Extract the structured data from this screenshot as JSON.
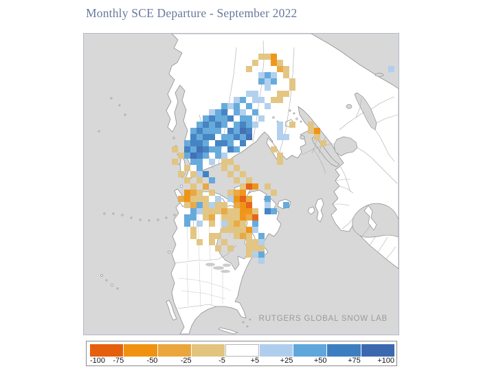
{
  "title": "Monthly SCE Departure - September 2022",
  "map": {
    "watermark": "RUTGERS GLOBAL SNOW LAB",
    "ocean_color": "#d8d8d8",
    "land_color": "#ffffff",
    "coast_color": "#8f8f8f",
    "border_color": "#a9a9a9",
    "state_border_color": "#c6c6c6",
    "cell_size": 9,
    "bins": [
      "#e55f0d",
      "#f0920f",
      "#eaa63c",
      "#e2c47e",
      "#afceee",
      "#5fa7db",
      "#3d7ec0",
      "#3b69b0"
    ],
    "bin_meanings": [
      "-100 to -75",
      "-75 to -50",
      "-50 to -25",
      "-25 to -5",
      "+5 to +25",
      "+25 to +50",
      "+50 to +75",
      "+75 to +100"
    ],
    "cells": [
      [
        26,
        9,
        4
      ],
      [
        27,
        9,
        4
      ],
      [
        24,
        10,
        4
      ],
      [
        25,
        10,
        5
      ],
      [
        27,
        10,
        4
      ],
      [
        28,
        10,
        4
      ],
      [
        22,
        11,
        5
      ],
      [
        23,
        11,
        4
      ],
      [
        24,
        11,
        5
      ],
      [
        26,
        11,
        5
      ],
      [
        29,
        11,
        4
      ],
      [
        20,
        12,
        4
      ],
      [
        21,
        12,
        5
      ],
      [
        22,
        12,
        6
      ],
      [
        24,
        12,
        5
      ],
      [
        25,
        12,
        4
      ],
      [
        27,
        12,
        5
      ],
      [
        19,
        13,
        5
      ],
      [
        20,
        13,
        6
      ],
      [
        21,
        13,
        5
      ],
      [
        22,
        13,
        5
      ],
      [
        23,
        13,
        6
      ],
      [
        25,
        13,
        5
      ],
      [
        26,
        13,
        5
      ],
      [
        28,
        13,
        4
      ],
      [
        18,
        14,
        5
      ],
      [
        19,
        14,
        6
      ],
      [
        20,
        14,
        5
      ],
      [
        21,
        14,
        6
      ],
      [
        22,
        14,
        5
      ],
      [
        24,
        14,
        5
      ],
      [
        25,
        14,
        6
      ],
      [
        26,
        14,
        5
      ],
      [
        27,
        14,
        4
      ],
      [
        17,
        15,
        5
      ],
      [
        18,
        15,
        6
      ],
      [
        19,
        15,
        5
      ],
      [
        20,
        15,
        5
      ],
      [
        21,
        15,
        5
      ],
      [
        23,
        15,
        6
      ],
      [
        24,
        15,
        5
      ],
      [
        25,
        15,
        7
      ],
      [
        26,
        15,
        6
      ],
      [
        17,
        16,
        6
      ],
      [
        18,
        16,
        5
      ],
      [
        19,
        16,
        6
      ],
      [
        20,
        16,
        6
      ],
      [
        22,
        16,
        5
      ],
      [
        23,
        16,
        5
      ],
      [
        24,
        16,
        6
      ],
      [
        25,
        16,
        5
      ],
      [
        26,
        16,
        7
      ],
      [
        16,
        17,
        5
      ],
      [
        17,
        17,
        6
      ],
      [
        18,
        17,
        6
      ],
      [
        19,
        17,
        5
      ],
      [
        21,
        17,
        6
      ],
      [
        22,
        17,
        6
      ],
      [
        23,
        17,
        5
      ],
      [
        25,
        17,
        6
      ],
      [
        16,
        18,
        6
      ],
      [
        17,
        18,
        5
      ],
      [
        18,
        18,
        7
      ],
      [
        19,
        18,
        6
      ],
      [
        20,
        18,
        5
      ],
      [
        21,
        18,
        5
      ],
      [
        23,
        18,
        6
      ],
      [
        24,
        18,
        5
      ],
      [
        16,
        19,
        5
      ],
      [
        17,
        19,
        7
      ],
      [
        18,
        19,
        6
      ],
      [
        19,
        19,
        5
      ],
      [
        21,
        19,
        5
      ],
      [
        22,
        19,
        4
      ],
      [
        17,
        20,
        5
      ],
      [
        18,
        20,
        5
      ],
      [
        20,
        20,
        4
      ],
      [
        31,
        14,
        4
      ],
      [
        31,
        15,
        4
      ],
      [
        31,
        16,
        4
      ],
      [
        32,
        16,
        4
      ],
      [
        27,
        4,
        3
      ],
      [
        28,
        3,
        3
      ],
      [
        29,
        3,
        3
      ],
      [
        30,
        3,
        1
      ],
      [
        30,
        4,
        1
      ],
      [
        31,
        4,
        3
      ],
      [
        31,
        5,
        2
      ],
      [
        32,
        5,
        3
      ],
      [
        32,
        6,
        3
      ],
      [
        33,
        7,
        3
      ],
      [
        33,
        8,
        3
      ],
      [
        32,
        9,
        3
      ],
      [
        31,
        9,
        3
      ],
      [
        30,
        10,
        3
      ],
      [
        31,
        10,
        3
      ],
      [
        26,
        5,
        3
      ],
      [
        28,
        6,
        4
      ],
      [
        29,
        6,
        5
      ],
      [
        28,
        7,
        5
      ],
      [
        29,
        7,
        4
      ],
      [
        30,
        6,
        4
      ],
      [
        30,
        7,
        5
      ],
      [
        29,
        8,
        4
      ],
      [
        49,
        5,
        4
      ],
      [
        14,
        18,
        3
      ],
      [
        15,
        19,
        3
      ],
      [
        14,
        20,
        3
      ],
      [
        16,
        21,
        3
      ],
      [
        15,
        22,
        3
      ],
      [
        17,
        22,
        3
      ],
      [
        16,
        23,
        3
      ],
      [
        18,
        23,
        3
      ],
      [
        17,
        24,
        3
      ],
      [
        19,
        24,
        2
      ],
      [
        22,
        20,
        3
      ],
      [
        23,
        20,
        3
      ],
      [
        22,
        21,
        3
      ],
      [
        24,
        21,
        3
      ],
      [
        23,
        22,
        3
      ],
      [
        25,
        22,
        3
      ],
      [
        24,
        23,
        3
      ],
      [
        26,
        23,
        3
      ],
      [
        25,
        24,
        3
      ],
      [
        18,
        21,
        5
      ],
      [
        19,
        22,
        6
      ],
      [
        18,
        22,
        4
      ],
      [
        20,
        23,
        5
      ],
      [
        30,
        18,
        3
      ],
      [
        31,
        19,
        3
      ],
      [
        31,
        20,
        3
      ],
      [
        36,
        14,
        3
      ],
      [
        37,
        15,
        1
      ],
      [
        36,
        15,
        3
      ],
      [
        37,
        16,
        3
      ],
      [
        38,
        17,
        3
      ],
      [
        33,
        14,
        3
      ],
      [
        16,
        25,
        1
      ],
      [
        17,
        25,
        2
      ],
      [
        18,
        25,
        3
      ],
      [
        20,
        25,
        3
      ],
      [
        15,
        26,
        2
      ],
      [
        16,
        26,
        1
      ],
      [
        17,
        26,
        3
      ],
      [
        18,
        26,
        3
      ],
      [
        19,
        26,
        3
      ],
      [
        16,
        27,
        3
      ],
      [
        17,
        27,
        2
      ],
      [
        18,
        27,
        5
      ],
      [
        19,
        27,
        3
      ],
      [
        20,
        27,
        4
      ],
      [
        17,
        28,
        5
      ],
      [
        18,
        28,
        4
      ],
      [
        19,
        28,
        3
      ],
      [
        20,
        28,
        3
      ],
      [
        17,
        29,
        5
      ],
      [
        19,
        29,
        3
      ],
      [
        20,
        29,
        2
      ],
      [
        18,
        30,
        4
      ],
      [
        20,
        30,
        3
      ],
      [
        17,
        31,
        3
      ],
      [
        16,
        29,
        5
      ],
      [
        16,
        30,
        5
      ],
      [
        17,
        32,
        3
      ],
      [
        18,
        33,
        3
      ],
      [
        21,
        27,
        3
      ],
      [
        22,
        27,
        3
      ],
      [
        21,
        28,
        3
      ],
      [
        22,
        28,
        2
      ],
      [
        23,
        28,
        3
      ],
      [
        22,
        29,
        3
      ],
      [
        23,
        29,
        3
      ],
      [
        24,
        29,
        3
      ],
      [
        23,
        30,
        3
      ],
      [
        24,
        30,
        2
      ],
      [
        25,
        30,
        3
      ],
      [
        22,
        30,
        4
      ],
      [
        23,
        31,
        3
      ],
      [
        24,
        31,
        3
      ],
      [
        25,
        31,
        3
      ],
      [
        24,
        32,
        3
      ],
      [
        22,
        31,
        3
      ],
      [
        21,
        26,
        4
      ],
      [
        23,
        26,
        4
      ],
      [
        24,
        25,
        2
      ],
      [
        25,
        25,
        1
      ],
      [
        24,
        26,
        1
      ],
      [
        25,
        26,
        0
      ],
      [
        26,
        26,
        2
      ],
      [
        25,
        27,
        1
      ],
      [
        26,
        27,
        0
      ],
      [
        24,
        27,
        2
      ],
      [
        26,
        28,
        1
      ],
      [
        25,
        28,
        1
      ],
      [
        26,
        29,
        2
      ],
      [
        25,
        29,
        1
      ],
      [
        27,
        29,
        0
      ],
      [
        26,
        31,
        1
      ],
      [
        25,
        32,
        2
      ],
      [
        26,
        32,
        3
      ],
      [
        23,
        25,
        3
      ],
      [
        27,
        28,
        3
      ],
      [
        24,
        28,
        3
      ],
      [
        27,
        30,
        5
      ],
      [
        27,
        31,
        4
      ],
      [
        28,
        32,
        5
      ],
      [
        28,
        33,
        4
      ],
      [
        20,
        32,
        3
      ],
      [
        21,
        32,
        3
      ],
      [
        20,
        33,
        3
      ],
      [
        22,
        33,
        3
      ],
      [
        21,
        34,
        3
      ],
      [
        23,
        34,
        3
      ],
      [
        26,
        33,
        3
      ],
      [
        27,
        33,
        3
      ],
      [
        26,
        34,
        3
      ],
      [
        28,
        34,
        3
      ],
      [
        27,
        35,
        4
      ],
      [
        28,
        35,
        5
      ],
      [
        26,
        24,
        0
      ],
      [
        27,
        24,
        1
      ],
      [
        29,
        24,
        3
      ],
      [
        30,
        25,
        3
      ],
      [
        29,
        26,
        5
      ],
      [
        29,
        27,
        4
      ],
      [
        30,
        28,
        5
      ],
      [
        29,
        28,
        6
      ],
      [
        32,
        27,
        5
      ],
      [
        27,
        34,
        3
      ],
      [
        26,
        35,
        3
      ],
      [
        28,
        36,
        4
      ]
    ]
  },
  "legend": {
    "values": [
      "-100",
      "-75",
      "-50",
      "-25",
      "-5",
      "+5",
      "+25",
      "+50",
      "+75",
      "+100"
    ],
    "swatches": [
      "#e55f0d",
      "#f0920f",
      "#eaa63c",
      "#e2c47e",
      "#ffffff",
      "#afceee",
      "#5fa7db",
      "#3d7ec0",
      "#3b69b0"
    ]
  }
}
